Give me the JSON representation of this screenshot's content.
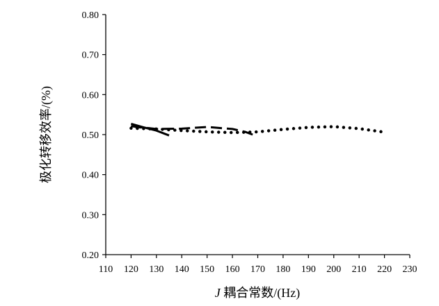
{
  "chart_data": {
    "type": "line",
    "title": "",
    "xlabel_prefix": "J",
    "xlabel": " 耦合常数/(Hz)",
    "ylabel": "极化转移效率/(%)",
    "xlim": [
      110,
      230
    ],
    "ylim": [
      0.2,
      0.8
    ],
    "x_ticks": [
      110,
      120,
      130,
      140,
      150,
      160,
      170,
      180,
      190,
      200,
      210,
      220,
      230
    ],
    "y_ticks": [
      "0.20",
      "0.30",
      "0.40",
      "0.50",
      "0.60",
      "0.70",
      "0.80"
    ],
    "grid": false,
    "legend": "none",
    "series": [
      {
        "style": "solid",
        "color": "#000000",
        "x": [
          120,
          125,
          130,
          135
        ],
        "y": [
          0.527,
          0.518,
          0.51,
          0.498
        ]
      },
      {
        "style": "rounded-square",
        "color": "#000000",
        "x": [
          120,
          122,
          124
        ],
        "y": [
          0.522,
          0.518,
          0.517
        ]
      },
      {
        "style": "dashed",
        "color": "#000000",
        "x": [
          120,
          130,
          140,
          150,
          160,
          165,
          168
        ],
        "y": [
          0.521,
          0.514,
          0.515,
          0.519,
          0.514,
          0.507,
          0.5
        ]
      },
      {
        "style": "dotted",
        "color": "#000000",
        "x": [
          120,
          130,
          140,
          150,
          160,
          170,
          180,
          190,
          200,
          210,
          220
        ],
        "y": [
          0.516,
          0.514,
          0.51,
          0.507,
          0.505,
          0.507,
          0.513,
          0.518,
          0.52,
          0.515,
          0.506
        ]
      }
    ]
  }
}
